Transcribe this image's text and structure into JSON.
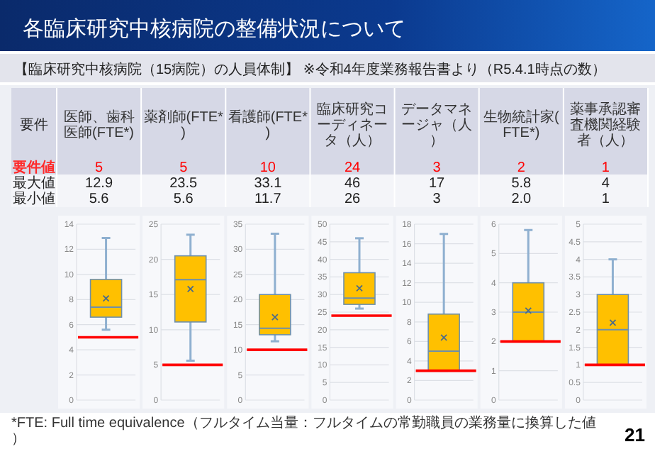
{
  "chart_data": [
    {
      "type": "other",
      "title": "各臨床研究中核病院の整備状況について",
      "subtitle": "【臨床研究中核病院（15病院）の人員体制】 ※令和4年度業務報告書より（R5.4.1時点の数）",
      "annotations": [
        "要件",
        "要件値",
        "最大値",
        "最小値",
        "*FTE: Full time equivalence（フルタイム当量：フルタイムの常勤職員の業務量に換算した値）",
        "21"
      ]
    },
    {
      "type": "box",
      "title": "医師、歯科医師(FTE*)",
      "grid": "y",
      "categories": [
        null
      ],
      "ylim": [
        0,
        14
      ],
      "yticks": [
        0,
        2,
        4,
        6,
        8,
        10,
        12,
        14
      ],
      "annotations": [
        "12.9",
        "5.6"
      ],
      "ref_lines": [
        {
          "axis": "y",
          "value": 5,
          "label": "5",
          "color": "#ff0000"
        }
      ],
      "series": [
        {
          "color": "#ffc000",
          "boxes": [
            {
              "low": 5.6,
              "q1": 6.6,
              "median": 7.4,
              "q3": 9.6,
              "high": 12.9,
              "mean": 8.1
            }
          ]
        }
      ]
    },
    {
      "type": "box",
      "title": "薬剤師(FTE*)",
      "grid": "y",
      "categories": [
        null
      ],
      "ylim": [
        0,
        25
      ],
      "yticks": [
        0,
        5,
        10,
        15,
        20,
        25
      ],
      "annotations": [
        "23.5",
        "5.6"
      ],
      "ref_lines": [
        {
          "axis": "y",
          "value": 5,
          "label": "5",
          "color": "#ff0000"
        }
      ],
      "series": [
        {
          "color": "#ffc000",
          "boxes": [
            {
              "low": 5.6,
              "q1": 11.1,
              "median": 17.1,
              "q3": 20.5,
              "high": 23.5,
              "mean": 15.8
            }
          ]
        }
      ]
    },
    {
      "type": "box",
      "title": "看護師(FTE*)",
      "grid": "y",
      "categories": [
        null
      ],
      "ylim": [
        0,
        35
      ],
      "yticks": [
        0,
        5,
        10,
        15,
        20,
        25,
        30,
        35
      ],
      "annotations": [
        "33.1",
        "11.7"
      ],
      "ref_lines": [
        {
          "axis": "y",
          "value": 10,
          "label": "10",
          "color": "#ff0000"
        }
      ],
      "series": [
        {
          "color": "#ffc000",
          "boxes": [
            {
              "low": 11.7,
              "q1": 13,
              "median": 14.3,
              "q3": 21,
              "high": 33.1,
              "mean": 16.5
            }
          ]
        }
      ]
    },
    {
      "type": "box",
      "title": "臨床研究コーディネータ（人）",
      "grid": "y",
      "categories": [
        null
      ],
      "ylim": [
        0,
        50
      ],
      "yticks": [
        0,
        5,
        10,
        15,
        20,
        25,
        30,
        35,
        40,
        45,
        50
      ],
      "annotations": [
        "46",
        "26"
      ],
      "ref_lines": [
        {
          "axis": "y",
          "value": 24,
          "label": "24",
          "color": "#ff0000"
        }
      ],
      "series": [
        {
          "color": "#ffc000",
          "boxes": [
            {
              "low": 26,
              "q1": 27.2,
              "median": 29,
              "q3": 36.2,
              "high": 46,
              "mean": 31.8
            }
          ]
        }
      ]
    },
    {
      "type": "box",
      "title": "データマネージャ（人）",
      "grid": "y",
      "categories": [
        null
      ],
      "ylim": [
        0,
        18
      ],
      "yticks": [
        0,
        2,
        4,
        6,
        8,
        10,
        12,
        14,
        16,
        18
      ],
      "annotations": [
        "17",
        "3"
      ],
      "ref_lines": [
        {
          "axis": "y",
          "value": 3,
          "label": "3",
          "color": "#ff0000"
        }
      ],
      "series": [
        {
          "color": "#ffc000",
          "boxes": [
            {
              "low": 3,
              "q1": 3,
              "median": 5,
              "q3": 8.8,
              "high": 17,
              "mean": 6.4
            }
          ]
        }
      ]
    },
    {
      "type": "box",
      "title": "生物統計家(FTE*)",
      "grid": "y",
      "categories": [
        null
      ],
      "ylim": [
        0,
        6
      ],
      "yticks": [
        0,
        1,
        2,
        3,
        4,
        5,
        6
      ],
      "annotations": [
        "5.8",
        "2.0"
      ],
      "ref_lines": [
        {
          "axis": "y",
          "value": 2,
          "label": "2",
          "color": "#ff0000"
        }
      ],
      "series": [
        {
          "color": "#ffc000",
          "boxes": [
            {
              "low": 2,
              "q1": 2,
              "median": 3,
              "q3": 4,
              "high": 5.8,
              "mean": 3.05
            }
          ]
        }
      ]
    },
    {
      "type": "box",
      "title": "薬事承認審査機関経験者（人）",
      "grid": "y",
      "categories": [
        null
      ],
      "ylim": [
        0,
        5
      ],
      "yticks": [
        0,
        0.5,
        1,
        1.5,
        2,
        2.5,
        3,
        3.5,
        4,
        4.5,
        5
      ],
      "annotations": [
        "4",
        "1"
      ],
      "ref_lines": [
        {
          "axis": "y",
          "value": 1,
          "label": "1",
          "color": "#ff0000"
        }
      ],
      "series": [
        {
          "color": "#ffc000",
          "boxes": [
            {
              "low": 1,
              "q1": 1,
              "median": 2,
              "q3": 3,
              "high": 4,
              "mean": 2.2
            }
          ]
        }
      ]
    }
  ]
}
